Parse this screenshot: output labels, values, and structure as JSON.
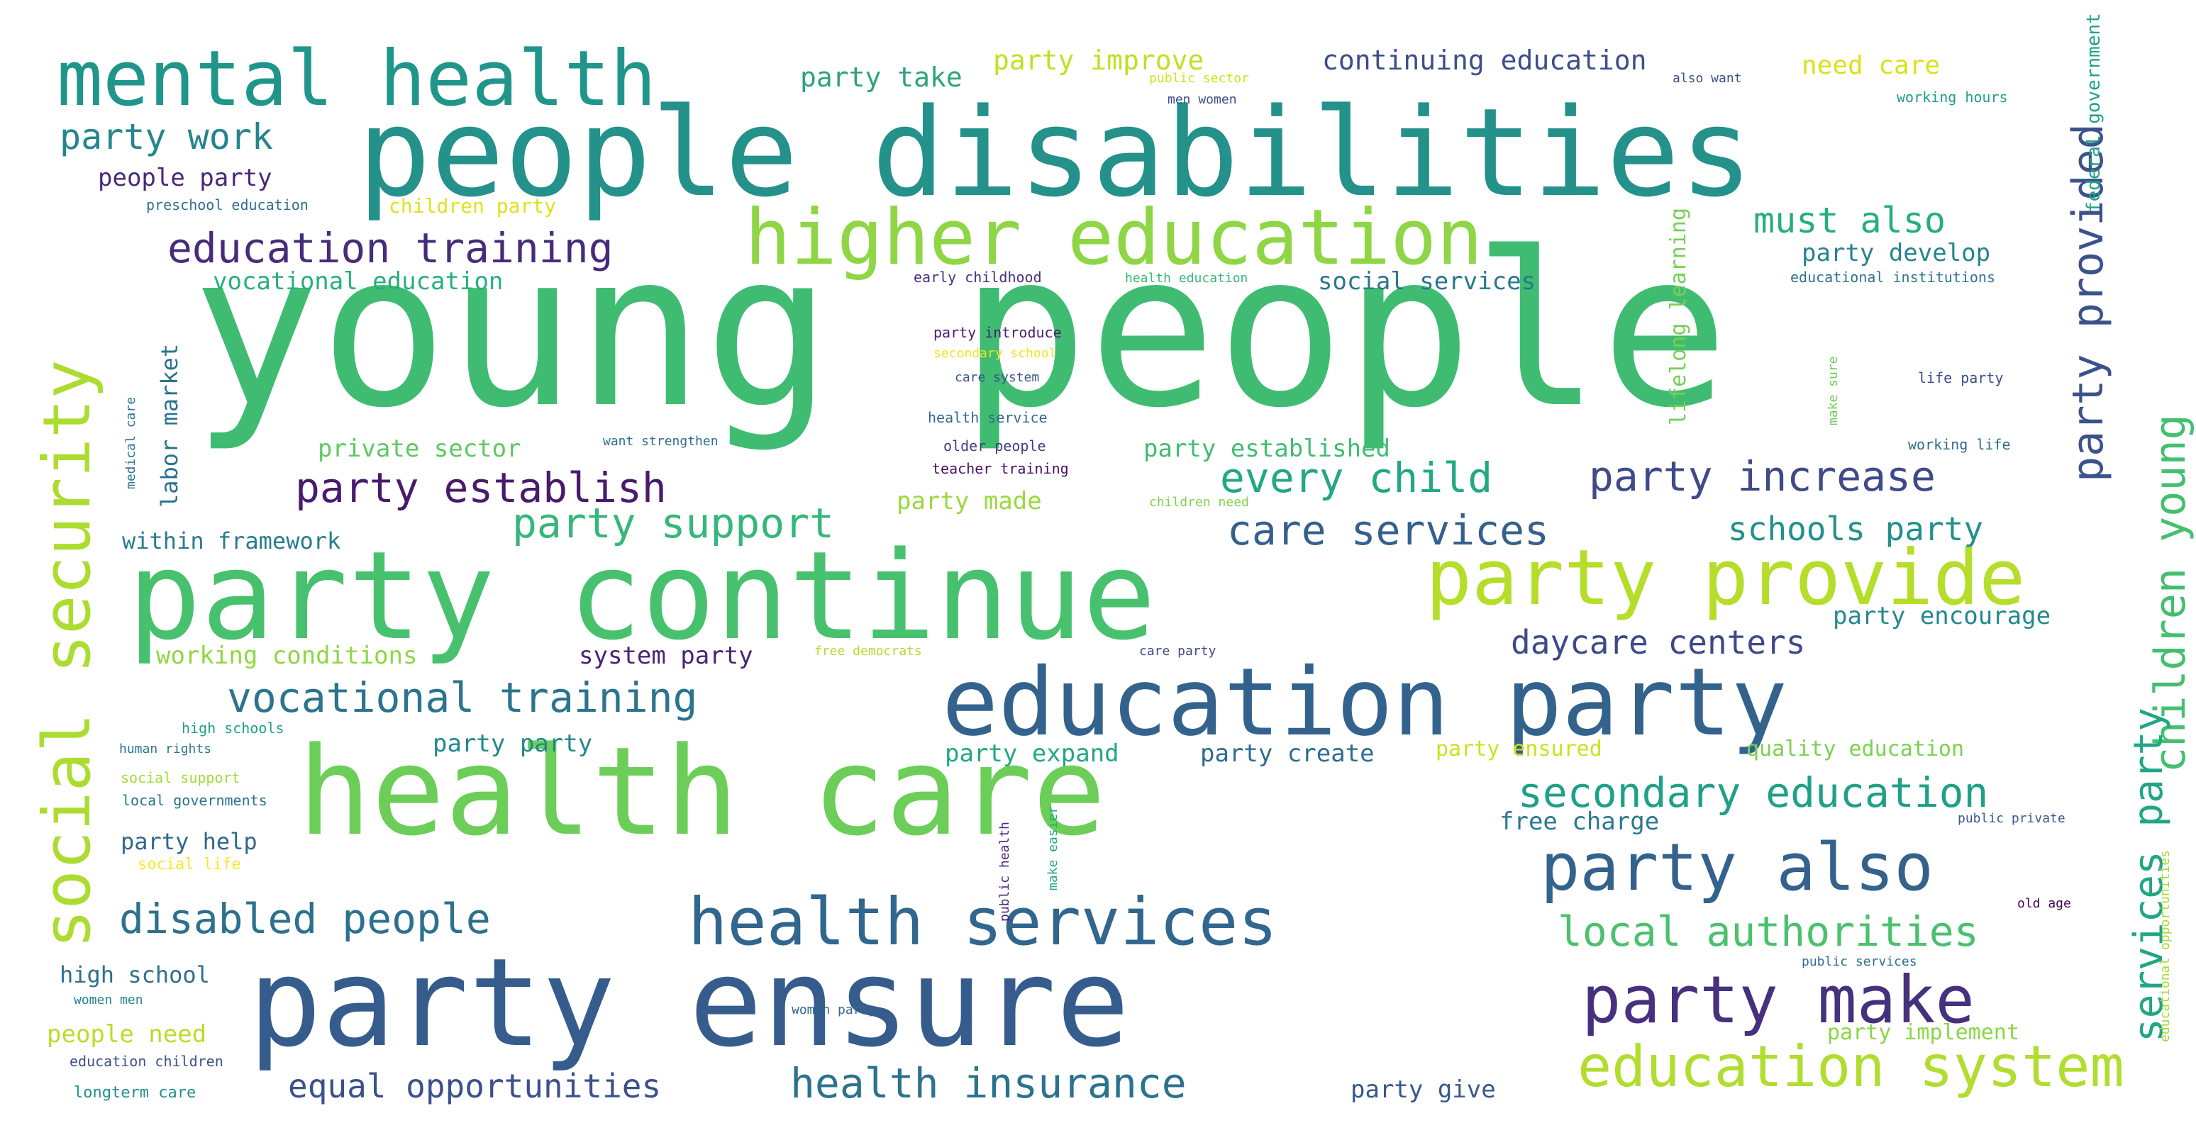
{
  "words": [
    {
      "text": "young people",
      "color": "#3fbc72"
    },
    {
      "text": "people disabilities",
      "color": "#24918b"
    },
    {
      "text": "party continue",
      "color": "#48c16e"
    },
    {
      "text": "health care",
      "color": "#6cce59"
    },
    {
      "text": "party ensure",
      "color": "#365c8d"
    },
    {
      "text": "education party",
      "color": "#33638d"
    },
    {
      "text": "mental health",
      "color": "#20968b"
    },
    {
      "text": "higher education",
      "color": "#8ed645"
    },
    {
      "text": "party provide",
      "color": "#b5de2b"
    },
    {
      "text": "social security",
      "color": "#addc30"
    },
    {
      "text": "health services",
      "color": "#31668e"
    },
    {
      "text": "party also",
      "color": "#33628d"
    },
    {
      "text": "party make",
      "color": "#45317d"
    },
    {
      "text": "education system",
      "color": "#b0dd2f"
    },
    {
      "text": "children young",
      "color": "#44bf70"
    },
    {
      "text": "party provided",
      "color": "#3b528b"
    },
    {
      "text": "services party",
      "color": "#21a685"
    },
    {
      "text": "education training",
      "color": "#472c7a"
    },
    {
      "text": "party increase",
      "color": "#3e4a89"
    },
    {
      "text": "party establish",
      "color": "#481b6d"
    },
    {
      "text": "every child",
      "color": "#22a884"
    },
    {
      "text": "vocational training",
      "color": "#2b748e"
    },
    {
      "text": "secondary education",
      "color": "#1fa088"
    },
    {
      "text": "local authorities",
      "color": "#4ac16d"
    },
    {
      "text": "disabled people",
      "color": "#2c718e"
    },
    {
      "text": "health insurance",
      "color": "#2c728e"
    },
    {
      "text": "party support",
      "color": "#35b779"
    },
    {
      "text": "care services",
      "color": "#34608d"
    },
    {
      "text": "party work",
      "color": "#25858e"
    },
    {
      "text": "must also",
      "color": "#27ad81"
    },
    {
      "text": "equal opportunities",
      "color": "#3b518b"
    },
    {
      "text": "daycare centers",
      "color": "#3e4989"
    },
    {
      "text": "schools party",
      "color": "#21918c"
    },
    {
      "text": "continuing education",
      "color": "#3d4e8a"
    },
    {
      "text": "party improve",
      "color": "#c2df23"
    },
    {
      "text": "party take",
      "color": "#2ea37f"
    },
    {
      "text": "need care",
      "color": "#d8e219"
    },
    {
      "text": "people party",
      "color": "#482878"
    },
    {
      "text": "party develop",
      "color": "#25848e"
    },
    {
      "text": "social services",
      "color": "#2a778e"
    },
    {
      "text": "vocational education",
      "color": "#29af7f"
    },
    {
      "text": "private sector",
      "color": "#5ec962"
    },
    {
      "text": "party established",
      "color": "#40bd72"
    },
    {
      "text": "party made",
      "color": "#9bd93c"
    },
    {
      "text": "within framework",
      "color": "#287c8e"
    },
    {
      "text": "working conditions",
      "color": "#90d743"
    },
    {
      "text": "system party",
      "color": "#482475"
    },
    {
      "text": "party encourage",
      "color": "#23898e"
    },
    {
      "text": "party party",
      "color": "#23888e"
    },
    {
      "text": "party expand",
      "color": "#22a785"
    },
    {
      "text": "party create",
      "color": "#2e6e8e"
    },
    {
      "text": "party ensured",
      "color": "#cde11d"
    },
    {
      "text": "quality education",
      "color": "#7ad151"
    },
    {
      "text": "free charge",
      "color": "#2a788e"
    },
    {
      "text": "party help",
      "color": "#31688e"
    },
    {
      "text": "high school",
      "color": "#2d708e"
    },
    {
      "text": "people need",
      "color": "#b8de29"
    },
    {
      "text": "party give",
      "color": "#38588c"
    },
    {
      "text": "party implement",
      "color": "#8bd646"
    },
    {
      "text": "labor market",
      "color": "#2c728e"
    },
    {
      "text": "lifelong learning",
      "color": "#75d054"
    },
    {
      "text": "federal government",
      "color": "#20a386"
    },
    {
      "text": "children party",
      "color": "#dde318"
    },
    {
      "text": "preschool education",
      "color": "#2e6f8e"
    },
    {
      "text": "early childhood",
      "color": "#46307e"
    },
    {
      "text": "health education",
      "color": "#37b878"
    },
    {
      "text": "educational institutions",
      "color": "#2b758e"
    },
    {
      "text": "party introduce",
      "color": "#482071"
    },
    {
      "text": "secondary school",
      "color": "#f1e51d"
    },
    {
      "text": "care system",
      "color": "#3a548c"
    },
    {
      "text": "health service",
      "color": "#2f6c8e"
    },
    {
      "text": "older people",
      "color": "#443a83"
    },
    {
      "text": "teacher training",
      "color": "#471164"
    },
    {
      "text": "want strengthen",
      "color": "#2e6e8e"
    },
    {
      "text": "children need",
      "color": "#7fd34e"
    },
    {
      "text": "make sure",
      "color": "#6ccd5a"
    },
    {
      "text": "life party",
      "color": "#3e4c8a"
    },
    {
      "text": "working life",
      "color": "#2f6b8e"
    },
    {
      "text": "medical care",
      "color": "#2a768e"
    },
    {
      "text": "public sector",
      "color": "#d0e11c"
    },
    {
      "text": "men women",
      "color": "#3c4f8a"
    },
    {
      "text": "also want",
      "color": "#3c508b"
    },
    {
      "text": "working hours",
      "color": "#1f9e89"
    },
    {
      "text": "free democrats",
      "color": "#b2dd2d"
    },
    {
      "text": "care party",
      "color": "#3e4989"
    },
    {
      "text": "high schools",
      "color": "#1fa287"
    },
    {
      "text": "human rights",
      "color": "#2a778e"
    },
    {
      "text": "social support",
      "color": "#a2da37"
    },
    {
      "text": "local governments",
      "color": "#2c718e"
    },
    {
      "text": "social life",
      "color": "#fde725"
    },
    {
      "text": "public health",
      "color": "#482979"
    },
    {
      "text": "make easier",
      "color": "#22a884"
    },
    {
      "text": "public private",
      "color": "#38588c"
    },
    {
      "text": "old age",
      "color": "#440154"
    },
    {
      "text": "educational opportunities",
      "color": "#a5db36"
    },
    {
      "text": "public services",
      "color": "#2e6f8e"
    },
    {
      "text": "women men",
      "color": "#24868e"
    },
    {
      "text": "women party",
      "color": "#31688e"
    },
    {
      "text": "education children",
      "color": "#3b528b"
    },
    {
      "text": "longterm care",
      "color": "#21918c"
    }
  ]
}
